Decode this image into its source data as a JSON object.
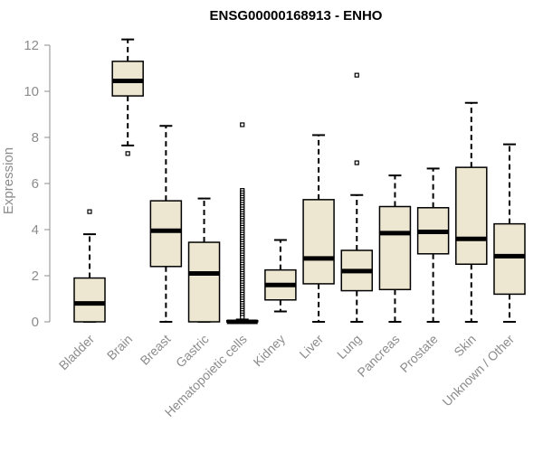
{
  "chart_data": {
    "type": "box",
    "title": "ENSG00000168913 - ENHO",
    "ylabel": "Expression",
    "xlabel": "",
    "ylim": [
      0,
      12.4
    ],
    "yticks": [
      0,
      2,
      4,
      6,
      8,
      10,
      12
    ],
    "categories": [
      "Bladder",
      "Brain",
      "Breast",
      "Gastric",
      "Hematopoietic cells",
      "Kidney",
      "Liver",
      "Lung",
      "Pancreas",
      "Prostate",
      "Skin",
      "Unknown / Other"
    ],
    "boxes": [
      {
        "whisker_low": 0,
        "q1": 0,
        "median": 0.8,
        "q3": 1.9,
        "whisker_high": 3.8,
        "outliers": [
          4.78
        ]
      },
      {
        "whisker_low": 7.65,
        "q1": 9.8,
        "median": 10.45,
        "q3": 11.3,
        "whisker_high": 12.25,
        "outliers": [
          7.3
        ]
      },
      {
        "whisker_low": 0,
        "q1": 2.4,
        "median": 3.95,
        "q3": 5.25,
        "whisker_high": 8.5,
        "outliers": []
      },
      {
        "whisker_low": 0,
        "q1": 0,
        "median": 2.1,
        "q3": 3.45,
        "whisker_high": 5.35,
        "outliers": []
      },
      {
        "whisker_low": 0,
        "q1": 0,
        "median": 0,
        "q3": 0.05,
        "whisker_high": 0.1,
        "outliers": [
          8.55,
          5.7,
          5.6,
          5.5,
          5.4,
          5.3,
          5.2,
          5.1,
          5.0,
          4.9,
          4.8,
          4.7,
          4.6,
          4.5,
          4.4,
          4.3,
          4.2,
          4.1,
          4.0,
          3.9,
          3.8,
          3.7,
          3.6,
          3.5,
          3.4,
          3.3,
          3.2,
          3.1,
          3.0,
          2.9,
          2.8,
          2.7,
          2.6,
          2.5,
          2.4,
          2.3,
          2.2,
          2.1,
          2.0,
          1.9,
          1.8,
          1.7,
          1.6,
          1.5,
          1.4,
          1.3,
          1.2,
          1.1,
          1.0,
          0.9,
          0.8,
          0.7,
          0.6,
          0.5,
          0.4,
          0.3,
          0.2
        ]
      },
      {
        "whisker_low": 0.45,
        "q1": 0.95,
        "median": 1.6,
        "q3": 2.25,
        "whisker_high": 3.55,
        "outliers": []
      },
      {
        "whisker_low": 0,
        "q1": 1.65,
        "median": 2.75,
        "q3": 5.3,
        "whisker_high": 8.1,
        "outliers": []
      },
      {
        "whisker_low": 0,
        "q1": 1.35,
        "median": 2.2,
        "q3": 3.1,
        "whisker_high": 5.5,
        "outliers": [
          10.7,
          6.9
        ]
      },
      {
        "whisker_low": 0,
        "q1": 1.4,
        "median": 3.85,
        "q3": 5.0,
        "whisker_high": 6.35,
        "outliers": []
      },
      {
        "whisker_low": 0,
        "q1": 2.95,
        "median": 3.9,
        "q3": 4.95,
        "whisker_high": 6.65,
        "outliers": []
      },
      {
        "whisker_low": 0,
        "q1": 2.5,
        "median": 3.6,
        "q3": 6.7,
        "whisker_high": 9.5,
        "outliers": []
      },
      {
        "whisker_low": 0,
        "q1": 1.2,
        "median": 2.85,
        "q3": 4.25,
        "whisker_high": 7.7,
        "outliers": []
      }
    ],
    "colors": {
      "box_fill": "#ede6d0",
      "box_stroke": "#000000",
      "median": "#000000",
      "axis": "#8c8c8c",
      "label": "#8c8c8c"
    },
    "grid": false,
    "legend": "none"
  }
}
